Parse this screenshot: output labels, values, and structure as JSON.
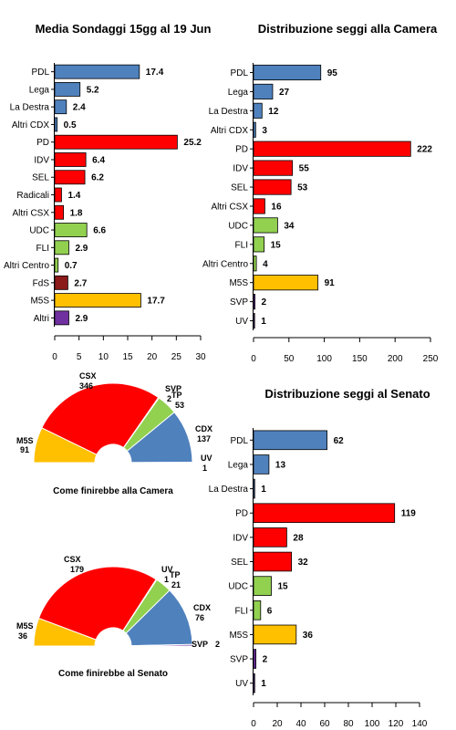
{
  "chart_data": [
    {
      "type": "bar",
      "orientation": "horizontal",
      "title": "Media Sondaggi 15gg al 19 Jun",
      "categories": [
        "PDL",
        "Lega",
        "La Destra",
        "Altri CDX",
        "PD",
        "IDV",
        "SEL",
        "Radicali",
        "Altri CSX",
        "UDC",
        "FLI",
        "Altri Centro",
        "FdS",
        "M5S",
        "Altri"
      ],
      "values": [
        17.4,
        5.2,
        2.4,
        0.5,
        25.2,
        6.4,
        6.2,
        1.4,
        1.8,
        6.6,
        2.9,
        0.7,
        2.7,
        17.7,
        2.9
      ],
      "value_labels": [
        "17.4",
        "5.2",
        "2.4",
        "0.5",
        "25.2",
        "6.4",
        "6.2",
        "1.4",
        "1.8",
        "6.6",
        "2.9",
        "0.7",
        "2.7",
        "17.7",
        "2.9"
      ],
      "colors": [
        "#4f81bd",
        "#4f81bd",
        "#4f81bd",
        "#4f81bd",
        "#ff0000",
        "#ff0000",
        "#ff0000",
        "#ff0000",
        "#ff0000",
        "#92d050",
        "#92d050",
        "#92d050",
        "#8b1a1a",
        "#ffc000",
        "#7030a0"
      ],
      "xlim": [
        0,
        30
      ],
      "xticks": [
        0,
        5,
        10,
        15,
        20,
        25,
        30
      ],
      "xtick_labels": [
        "0",
        "5",
        "10",
        "15",
        "20",
        "25",
        "30"
      ]
    },
    {
      "type": "bar",
      "orientation": "horizontal",
      "title": "Distribuzione seggi alla Camera",
      "categories": [
        "PDL",
        "Lega",
        "La Destra",
        "Altri CDX",
        "PD",
        "IDV",
        "SEL",
        "Altri CSX",
        "UDC",
        "FLI",
        "Altri Centro",
        "M5S",
        "SVP",
        "UV"
      ],
      "values": [
        95,
        27,
        12,
        3,
        222,
        55,
        53,
        16,
        34,
        15,
        4,
        91,
        2,
        1
      ],
      "value_labels": [
        "95",
        "27",
        "12",
        "3",
        "222",
        "55",
        "53",
        "16",
        "34",
        "15",
        "4",
        "91",
        "2",
        "1"
      ],
      "colors": [
        "#4f81bd",
        "#4f81bd",
        "#4f81bd",
        "#4f81bd",
        "#ff0000",
        "#ff0000",
        "#ff0000",
        "#ff0000",
        "#92d050",
        "#92d050",
        "#92d050",
        "#ffc000",
        "#7030a0",
        "#7030a0"
      ],
      "xlim": [
        0,
        250
      ],
      "xticks": [
        0,
        50,
        100,
        150,
        200,
        250
      ],
      "xtick_labels": [
        "0",
        "50",
        "100",
        "150",
        "200",
        "250"
      ]
    },
    {
      "type": "bar",
      "orientation": "horizontal",
      "title": "Distribuzione seggi al Senato",
      "categories": [
        "PDL",
        "Lega",
        "La Destra",
        "PD",
        "IDV",
        "SEL",
        "UDC",
        "FLI",
        "M5S",
        "SVP",
        "UV"
      ],
      "values": [
        62,
        13,
        1,
        119,
        28,
        32,
        15,
        6,
        36,
        2,
        1
      ],
      "value_labels": [
        "62",
        "13",
        "1",
        "119",
        "28",
        "32",
        "15",
        "6",
        "36",
        "2",
        "1"
      ],
      "colors": [
        "#4f81bd",
        "#4f81bd",
        "#4f81bd",
        "#ff0000",
        "#ff0000",
        "#ff0000",
        "#92d050",
        "#92d050",
        "#ffc000",
        "#7030a0",
        "#7030a0"
      ],
      "xlim": [
        0,
        140
      ],
      "xticks": [
        0,
        20,
        40,
        60,
        80,
        100,
        120,
        140
      ],
      "xtick_labels": [
        "0",
        "20",
        "40",
        "60",
        "80",
        "100",
        "120",
        "140"
      ]
    },
    {
      "type": "pie",
      "shape": "semicircle",
      "caption": "Come finirebbe alla Camera",
      "slices": [
        {
          "name": "M5S",
          "value": 91,
          "label": "91",
          "color": "#ffc000"
        },
        {
          "name": "CSX",
          "value": 346,
          "label": "346",
          "color": "#ff0000"
        },
        {
          "name": "SVP",
          "value": 2,
          "label": "2",
          "color": "#7030a0"
        },
        {
          "name": "TP",
          "value": 53,
          "label": "53",
          "color": "#92d050"
        },
        {
          "name": "CDX",
          "value": 137,
          "label": "137",
          "color": "#4f81bd"
        },
        {
          "name": "UV",
          "value": 1,
          "label": "1",
          "color": "#1f3864"
        }
      ]
    },
    {
      "type": "pie",
      "shape": "semicircle",
      "caption": "Come finirebbe al Senato",
      "slices": [
        {
          "name": "M5S",
          "value": 36,
          "label": "36",
          "color": "#ffc000"
        },
        {
          "name": "CSX",
          "value": 179,
          "label": "179",
          "color": "#ff0000"
        },
        {
          "name": "UV",
          "value": 1,
          "label": "1",
          "color": "#1f3864"
        },
        {
          "name": "TP",
          "value": 21,
          "label": "21",
          "color": "#92d050"
        },
        {
          "name": "CDX",
          "value": 76,
          "label": "76",
          "color": "#4f81bd"
        },
        {
          "name": "SVP",
          "value": 2,
          "label": "2",
          "color": "#7030a0"
        }
      ]
    }
  ]
}
